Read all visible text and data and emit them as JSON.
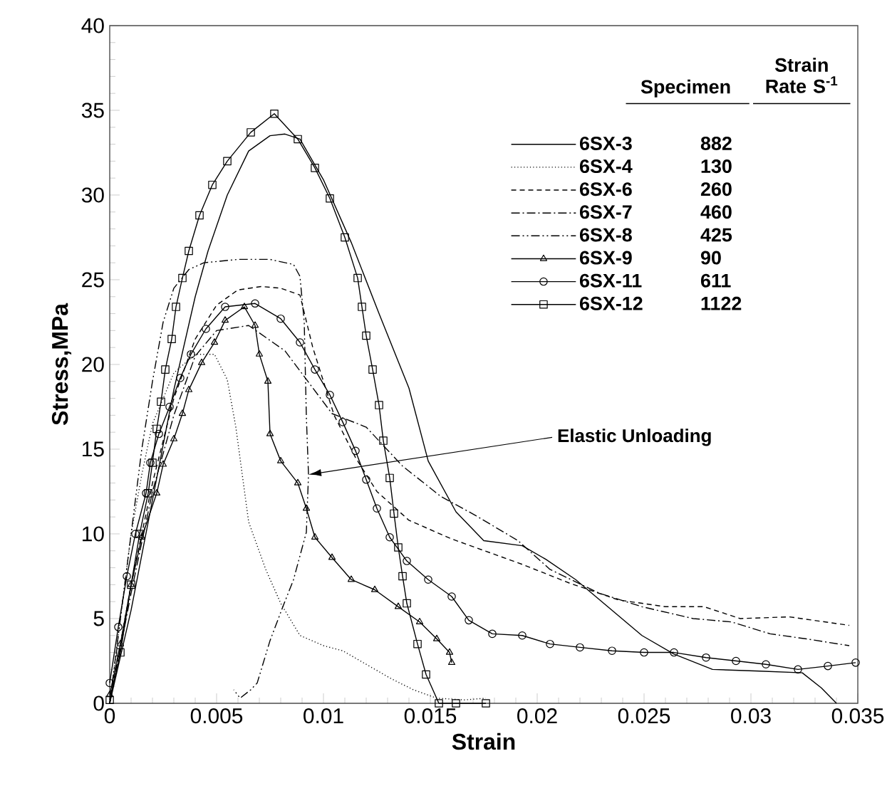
{
  "chart_data": {
    "type": "line",
    "xlabel": "Strain",
    "ylabel": "Stress,MPa",
    "legend": "top right",
    "legend_title": "Specimen",
    "xlim": [
      0,
      0.035
    ],
    "ylim": [
      0,
      40
    ],
    "xticks": [
      0,
      0.005,
      0.01,
      0.015,
      0.02,
      0.025,
      0.03,
      0.035
    ],
    "yticks": [
      0,
      5,
      10,
      15,
      20,
      25,
      30,
      35,
      40
    ],
    "annotations": [
      {
        "text": "Elastic Unloading",
        "x": 0.0093,
        "y": 13.5
      },
      "Strain Rate S$^{-1}$",
      "882",
      "130",
      "260",
      "460",
      "425",
      "90",
      "611",
      "1122"
    ],
    "series": [
      {
        "name": "6SX-3",
        "color": "#000000",
        "marker": "none",
        "line_style": "solid",
        "x": [
          0,
          0.001,
          0.002,
          0.003,
          0.004,
          0.0046,
          0.0055,
          0.0065,
          0.0075,
          0.0082,
          0.0089,
          0.01,
          0.0113,
          0.0126,
          0.014,
          0.0149,
          0.0162,
          0.0175,
          0.0193,
          0.0204,
          0.0218,
          0.0233,
          0.0249,
          0.0264,
          0.0282,
          0.0304,
          0.0324,
          0.0333,
          0.034
        ],
        "values": [
          0,
          5.5,
          12,
          18.5,
          24,
          26.7,
          30,
          32.6,
          33.5,
          33.6,
          33.3,
          30.9,
          27.2,
          23,
          18.6,
          14.3,
          11.3,
          9.6,
          9.3,
          8.5,
          7.3,
          5.7,
          4,
          2.9,
          2,
          1.9,
          1.8,
          0.9,
          0
        ]
      },
      {
        "name": "6SX-4",
        "color": "#000000",
        "marker": "none",
        "line_style": "dotted",
        "x": [
          0,
          0.0005,
          0.001,
          0.0015,
          0.002,
          0.003,
          0.004,
          0.0049,
          0.0055,
          0.0059,
          0.0062,
          0.0065,
          0.0073,
          0.008,
          0.0089,
          0.01,
          0.0109,
          0.012,
          0.0131,
          0.0142,
          0.0153,
          0.0166,
          0.0176
        ],
        "values": [
          0,
          5,
          10,
          13.5,
          16.5,
          19.5,
          20.6,
          20.6,
          19.1,
          16.3,
          13.5,
          10.7,
          7.9,
          5.9,
          4,
          3.4,
          3.1,
          2.3,
          1.5,
          0.8,
          0.3,
          0.2,
          0.3
        ]
      },
      {
        "name": "6SX-6",
        "color": "#000000",
        "marker": "none",
        "line_style": "dashed",
        "x": [
          0,
          0.001,
          0.002,
          0.003,
          0.004,
          0.005,
          0.006,
          0.0071,
          0.008,
          0.0089,
          0.0095,
          0.0105,
          0.0115,
          0.0125,
          0.014,
          0.016,
          0.0171,
          0.0193,
          0.0215,
          0.0238,
          0.026,
          0.0278,
          0.0295,
          0.0318,
          0.0346
        ],
        "values": [
          0,
          7,
          13,
          18,
          21.5,
          23.5,
          24.4,
          24.6,
          24.5,
          24.1,
          21,
          17,
          14.5,
          12.5,
          10.8,
          9.7,
          9.2,
          8.2,
          7.1,
          6.1,
          5.7,
          5.7,
          5,
          5.1,
          4.6
        ]
      },
      {
        "name": "6SX-7",
        "color": "#000000",
        "marker": "none",
        "line_style": "dashdot",
        "x": [
          0,
          0.001,
          0.002,
          0.003,
          0.004,
          0.005,
          0.0065,
          0.0082,
          0.0104,
          0.012,
          0.0137,
          0.0155,
          0.0171,
          0.0191,
          0.0206,
          0.0229,
          0.0249,
          0.0273,
          0.0291,
          0.0309,
          0.0326,
          0.0346
        ],
        "values": [
          0,
          6.5,
          12.5,
          17,
          20.5,
          22,
          22.3,
          20.8,
          17.1,
          16.3,
          14,
          12.2,
          11.1,
          9.6,
          7.9,
          6.5,
          5.7,
          5,
          4.8,
          4.1,
          3.8,
          3.4
        ]
      },
      {
        "name": "6SX-8",
        "color": "#000000",
        "marker": "none",
        "line_style": "dashdotdot",
        "x": [
          0,
          0.0005,
          0.001,
          0.0015,
          0.002,
          0.0025,
          0.003,
          0.0037,
          0.0044,
          0.006,
          0.0075,
          0.0086,
          0.0089,
          0.0091,
          0.0092,
          0.0093,
          0.0092,
          0.0086,
          0.0081,
          0.0075,
          0.0069,
          0.0066,
          0.0061,
          0.0058
        ],
        "values": [
          0,
          5,
          10,
          15,
          19,
          22.5,
          24.5,
          25.6,
          26,
          26.2,
          26.2,
          25.9,
          25.2,
          22.5,
          16.9,
          13.5,
          10.1,
          7.3,
          5.7,
          3.7,
          1.2,
          0.8,
          0.3,
          0.8
        ]
      },
      {
        "name": "6SX-9",
        "color": "#000000",
        "marker": "triangle",
        "line_style": "solid",
        "x": [
          0,
          0.0005,
          0.001,
          0.0015,
          0.0022,
          0.0025,
          0.003,
          0.0034,
          0.0037,
          0.0043,
          0.0049,
          0.0054,
          0.0063,
          0.0068,
          0.007,
          0.0074,
          0.0075,
          0.008,
          0.0088,
          0.0092,
          0.0096,
          0.0104,
          0.0113,
          0.0124,
          0.0135,
          0.0145,
          0.0153,
          0.0159,
          0.016
        ],
        "values": [
          0.5,
          3.5,
          7,
          9.8,
          12.4,
          14.1,
          15.6,
          17.1,
          18.5,
          20.1,
          21.3,
          22.6,
          23.4,
          22.3,
          20.6,
          19,
          15.9,
          14.3,
          13,
          11.5,
          9.8,
          8.6,
          7.3,
          6.7,
          5.7,
          4.8,
          3.8,
          3,
          2.4
        ]
      },
      {
        "name": "6SX-11",
        "color": "#000000",
        "marker": "circle",
        "line_style": "solid",
        "x": [
          0,
          0.0004,
          0.0008,
          0.0012,
          0.0017,
          0.0019,
          0.0023,
          0.0028,
          0.0033,
          0.0038,
          0.0045,
          0.0054,
          0.0068,
          0.008,
          0.0089,
          0.0096,
          0.0103,
          0.0109,
          0.0115,
          0.012,
          0.0125,
          0.0131,
          0.0139,
          0.0149,
          0.016,
          0.0168,
          0.0179,
          0.0193,
          0.0206,
          0.022,
          0.0235,
          0.025,
          0.0264,
          0.0279,
          0.0293,
          0.0307,
          0.0322,
          0.0336,
          0.0349
        ],
        "values": [
          1.2,
          4.5,
          7.5,
          10,
          12.4,
          14.2,
          15.9,
          17.5,
          19.2,
          20.6,
          22.1,
          23.4,
          23.6,
          22.7,
          21.3,
          19.7,
          18.2,
          16.6,
          14.9,
          13.2,
          11.5,
          9.8,
          8.4,
          7.3,
          6.3,
          4.9,
          4.1,
          4,
          3.5,
          3.3,
          3.1,
          3,
          3,
          2.7,
          2.5,
          2.3,
          2,
          2.2,
          2.4
        ]
      },
      {
        "name": "6SX-12",
        "color": "#000000",
        "marker": "square",
        "line_style": "solid",
        "x": [
          0,
          0.0005,
          0.001,
          0.0014,
          0.0018,
          0.002,
          0.0022,
          0.0024,
          0.0026,
          0.0029,
          0.0031,
          0.0034,
          0.0037,
          0.0042,
          0.0048,
          0.0055,
          0.0066,
          0.0077,
          0.0088,
          0.0096,
          0.0103,
          0.011,
          0.0116,
          0.0118,
          0.012,
          0.0123,
          0.0126,
          0.0128,
          0.0131,
          0.0133,
          0.0135,
          0.0137,
          0.0139,
          0.0144,
          0.0148,
          0.0154,
          0.0162,
          0.0176
        ],
        "values": [
          0.2,
          3,
          7,
          10,
          12.4,
          14.2,
          16.2,
          17.8,
          19.7,
          21.5,
          23.4,
          25.1,
          26.7,
          28.8,
          30.6,
          32,
          33.7,
          34.8,
          33.3,
          31.6,
          29.8,
          27.5,
          25.1,
          23.4,
          21.7,
          19.7,
          17.6,
          15.5,
          13.3,
          11.2,
          9.2,
          7.5,
          5.9,
          3.5,
          1.7,
          0,
          0,
          0
        ]
      }
    ]
  }
}
